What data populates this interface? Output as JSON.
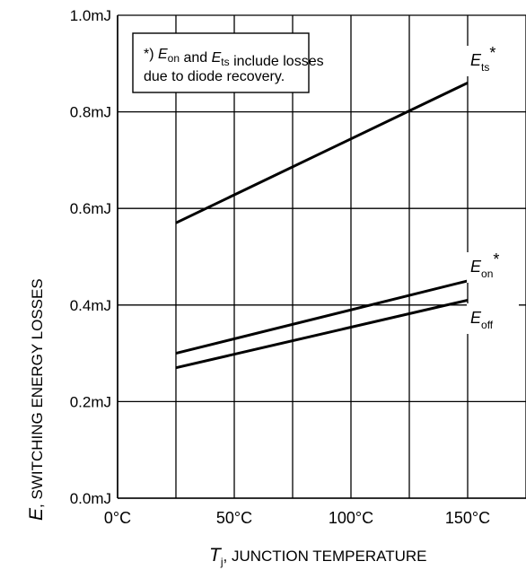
{
  "chart_data": {
    "type": "line",
    "xlabel": {
      "symbol": "T",
      "subscript": "j",
      "text": ", JUNCTION TEMPERATURE"
    },
    "ylabel": {
      "symbol": "E",
      "text": ", SWITCHING ENERGY LOSSES"
    },
    "x_ticks": [
      "0°C",
      "50°C",
      "100°C",
      "150°C"
    ],
    "y_ticks": [
      "0.0mJ",
      "0.2mJ",
      "0.4mJ",
      "0.6mJ",
      "0.8mJ",
      "1.0mJ"
    ],
    "xlim": [
      0,
      175
    ],
    "ylim": [
      0.0,
      1.0
    ],
    "x_unit": "°C",
    "y_unit": "mJ",
    "grid": true,
    "series": [
      {
        "name": "Ets*",
        "label_symbol": "E",
        "label_sub": "ts",
        "label_suffix": "*",
        "x": [
          25,
          150
        ],
        "y": [
          0.57,
          0.86
        ]
      },
      {
        "name": "Eon*",
        "label_symbol": "E",
        "label_sub": "on",
        "label_suffix": "*",
        "x": [
          25,
          150
        ],
        "y": [
          0.3,
          0.45
        ]
      },
      {
        "name": "Eoff",
        "label_symbol": "E",
        "label_sub": "off",
        "label_suffix": "",
        "x": [
          25,
          150
        ],
        "y": [
          0.27,
          0.41
        ]
      }
    ],
    "annotation": {
      "line1": [
        {
          "text": "*) ",
          "italic": false
        },
        {
          "text": "E",
          "italic": true
        },
        {
          "text": "on",
          "sub": true
        },
        {
          "text": " and ",
          "italic": false
        },
        {
          "text": "E",
          "italic": true
        },
        {
          "text": "ts",
          "sub": true
        },
        {
          "text": " include losses",
          "italic": false
        }
      ],
      "line2": "due to diode recovery."
    }
  }
}
